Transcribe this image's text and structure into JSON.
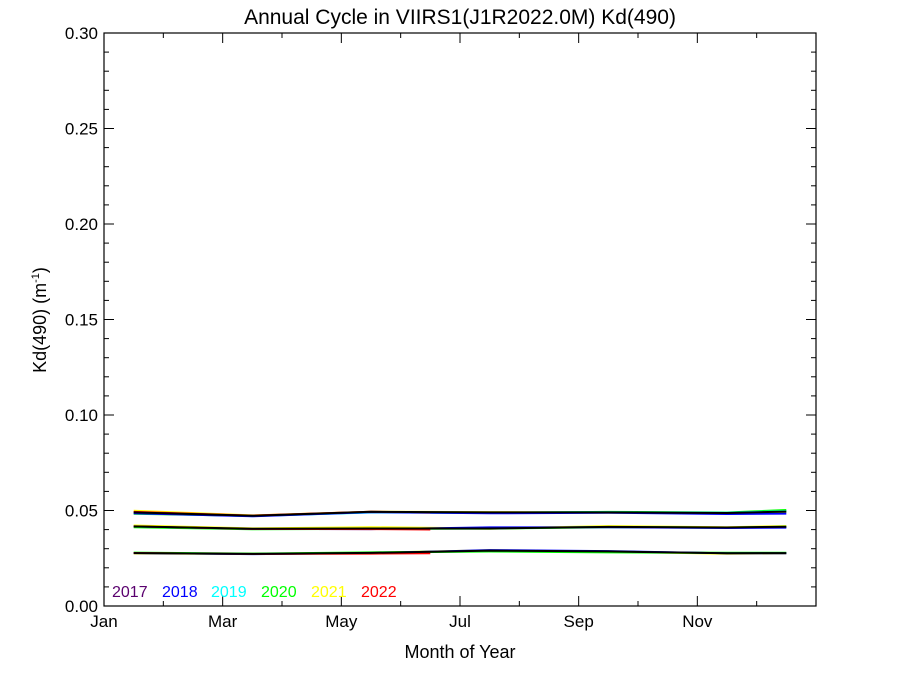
{
  "chart_data": {
    "type": "line",
    "title": "Annual Cycle in VIIRS1(J1R2022.0M) Kd(490)",
    "xlabel": "Month of Year",
    "ylabel": "Kd(490) (m",
    "ylabel_sup": "-1",
    "ylabel_close": ")",
    "ylim": [
      0,
      0.3
    ],
    "xlim": [
      0,
      12
    ],
    "yticks": [
      {
        "value": 0.0,
        "label": "0.00"
      },
      {
        "value": 0.05,
        "label": "0.05"
      },
      {
        "value": 0.1,
        "label": "0.10"
      },
      {
        "value": 0.15,
        "label": "0.15"
      },
      {
        "value": 0.2,
        "label": "0.20"
      },
      {
        "value": 0.25,
        "label": "0.25"
      },
      {
        "value": 0.3,
        "label": "0.30"
      }
    ],
    "xticks": [
      {
        "value": 0,
        "label": "Jan"
      },
      {
        "value": 2,
        "label": "Mar"
      },
      {
        "value": 4,
        "label": "May"
      },
      {
        "value": 6,
        "label": "Jul"
      },
      {
        "value": 8,
        "label": "Sep"
      },
      {
        "value": 10,
        "label": "Nov"
      }
    ],
    "grid": false,
    "legend_position": "bottom-left",
    "legend": [
      {
        "name": "2017",
        "color": "#5a006e"
      },
      {
        "name": "2018",
        "color": "#0000ff"
      },
      {
        "name": "2019",
        "color": "#00ffff"
      },
      {
        "name": "2020",
        "color": "#00ff00"
      },
      {
        "name": "2021",
        "color": "#ffff00"
      },
      {
        "name": "2022",
        "color": "#ff0000"
      }
    ],
    "lines": [
      {
        "color": "#ffff00",
        "width": 2.2,
        "x": [
          0.5,
          2.5,
          4.5,
          6.5,
          8.5,
          10.5,
          11.5
        ],
        "y": [
          0.0498,
          0.0474,
          0.0493,
          0.0491,
          0.0489,
          0.0486,
          0.0494
        ]
      },
      {
        "color": "#00ff00",
        "width": 2.2,
        "x": [
          0.5,
          2.5,
          4.5,
          6.5,
          8.5,
          10.5,
          11.5
        ],
        "y": [
          0.0484,
          0.0472,
          0.0491,
          0.0488,
          0.0492,
          0.0489,
          0.0502
        ]
      },
      {
        "color": "#00ffff",
        "width": 2.2,
        "x": [
          0.5,
          2.5,
          4.5,
          6.5,
          8.5,
          10.5,
          11.5
        ],
        "y": [
          0.0489,
          0.0471,
          0.049,
          0.0489,
          0.049,
          0.0488,
          0.0496
        ]
      },
      {
        "color": "#0000ff",
        "width": 1.8,
        "x": [
          0.5,
          2.5,
          4.5,
          6.5,
          8.5,
          10.5,
          11.5
        ],
        "y": [
          0.0485,
          0.0469,
          0.0491,
          0.0485,
          0.0488,
          0.0481,
          0.0483
        ]
      },
      {
        "color": "#ff0000",
        "width": 1.8,
        "x": [
          0.5,
          2.5,
          4.5,
          5.5
        ],
        "y": [
          0.0493,
          0.0474,
          0.0494,
          0.049
        ]
      },
      {
        "color": "#000000",
        "width": 2.0,
        "x": [
          0.5,
          2.5,
          4.5,
          6.5,
          8.5,
          10.5,
          11.5
        ],
        "y": [
          0.049,
          0.0472,
          0.0493,
          0.049,
          0.049,
          0.0487,
          0.0494
        ]
      },
      {
        "color": "#ffff00",
        "width": 2.2,
        "x": [
          0.5,
          2.5,
          4.5,
          6.5,
          8.5,
          10.5,
          11.5
        ],
        "y": [
          0.0421,
          0.0406,
          0.0412,
          0.0405,
          0.0418,
          0.0412,
          0.0418
        ]
      },
      {
        "color": "#00ff00",
        "width": 2.2,
        "x": [
          0.5,
          2.5,
          4.5,
          6.5,
          8.5,
          10.5,
          11.5
        ],
        "y": [
          0.0413,
          0.0402,
          0.0404,
          0.0406,
          0.0413,
          0.041,
          0.0414
        ]
      },
      {
        "color": "#0000ff",
        "width": 1.8,
        "x": [
          0.5,
          2.5,
          4.5,
          6.5,
          8.5,
          10.5,
          11.5
        ],
        "y": [
          0.0416,
          0.0403,
          0.0402,
          0.0412,
          0.0412,
          0.0408,
          0.041
        ]
      },
      {
        "color": "#ff0000",
        "width": 1.8,
        "x": [
          0.5,
          2.5,
          4.5,
          5.5
        ],
        "y": [
          0.0417,
          0.0403,
          0.0402,
          0.04
        ]
      },
      {
        "color": "#000000",
        "width": 2.0,
        "x": [
          0.5,
          2.5,
          4.5,
          6.5,
          8.5,
          10.5,
          11.5
        ],
        "y": [
          0.0417,
          0.0404,
          0.0406,
          0.0406,
          0.0414,
          0.0411,
          0.0415
        ]
      },
      {
        "color": "#ffff00",
        "width": 2.2,
        "x": [
          0.5,
          2.5,
          4.5,
          6.5,
          8.5,
          10.5,
          11.5
        ],
        "y": [
          0.0276,
          0.0273,
          0.0278,
          0.0291,
          0.0285,
          0.0274,
          0.0276
        ]
      },
      {
        "color": "#00ff00",
        "width": 2.2,
        "x": [
          0.5,
          2.5,
          4.5,
          6.5,
          8.5,
          10.5,
          11.5
        ],
        "y": [
          0.0279,
          0.0274,
          0.028,
          0.0286,
          0.0281,
          0.0278,
          0.0278
        ]
      },
      {
        "color": "#0000ff",
        "width": 1.8,
        "x": [
          0.5,
          2.5,
          4.5,
          6.5,
          8.5,
          10.5,
          11.5
        ],
        "y": [
          0.0277,
          0.0271,
          0.0277,
          0.0293,
          0.0288,
          0.0276,
          0.0276
        ]
      },
      {
        "color": "#ff0000",
        "width": 1.8,
        "x": [
          0.5,
          2.5,
          4.5,
          5.5
        ],
        "y": [
          0.0278,
          0.0272,
          0.0274,
          0.0276
        ]
      },
      {
        "color": "#000000",
        "width": 2.0,
        "x": [
          0.5,
          2.5,
          4.5,
          6.5,
          8.5,
          10.5,
          11.5
        ],
        "y": [
          0.0277,
          0.0273,
          0.0278,
          0.029,
          0.0286,
          0.0276,
          0.0277
        ]
      }
    ]
  }
}
